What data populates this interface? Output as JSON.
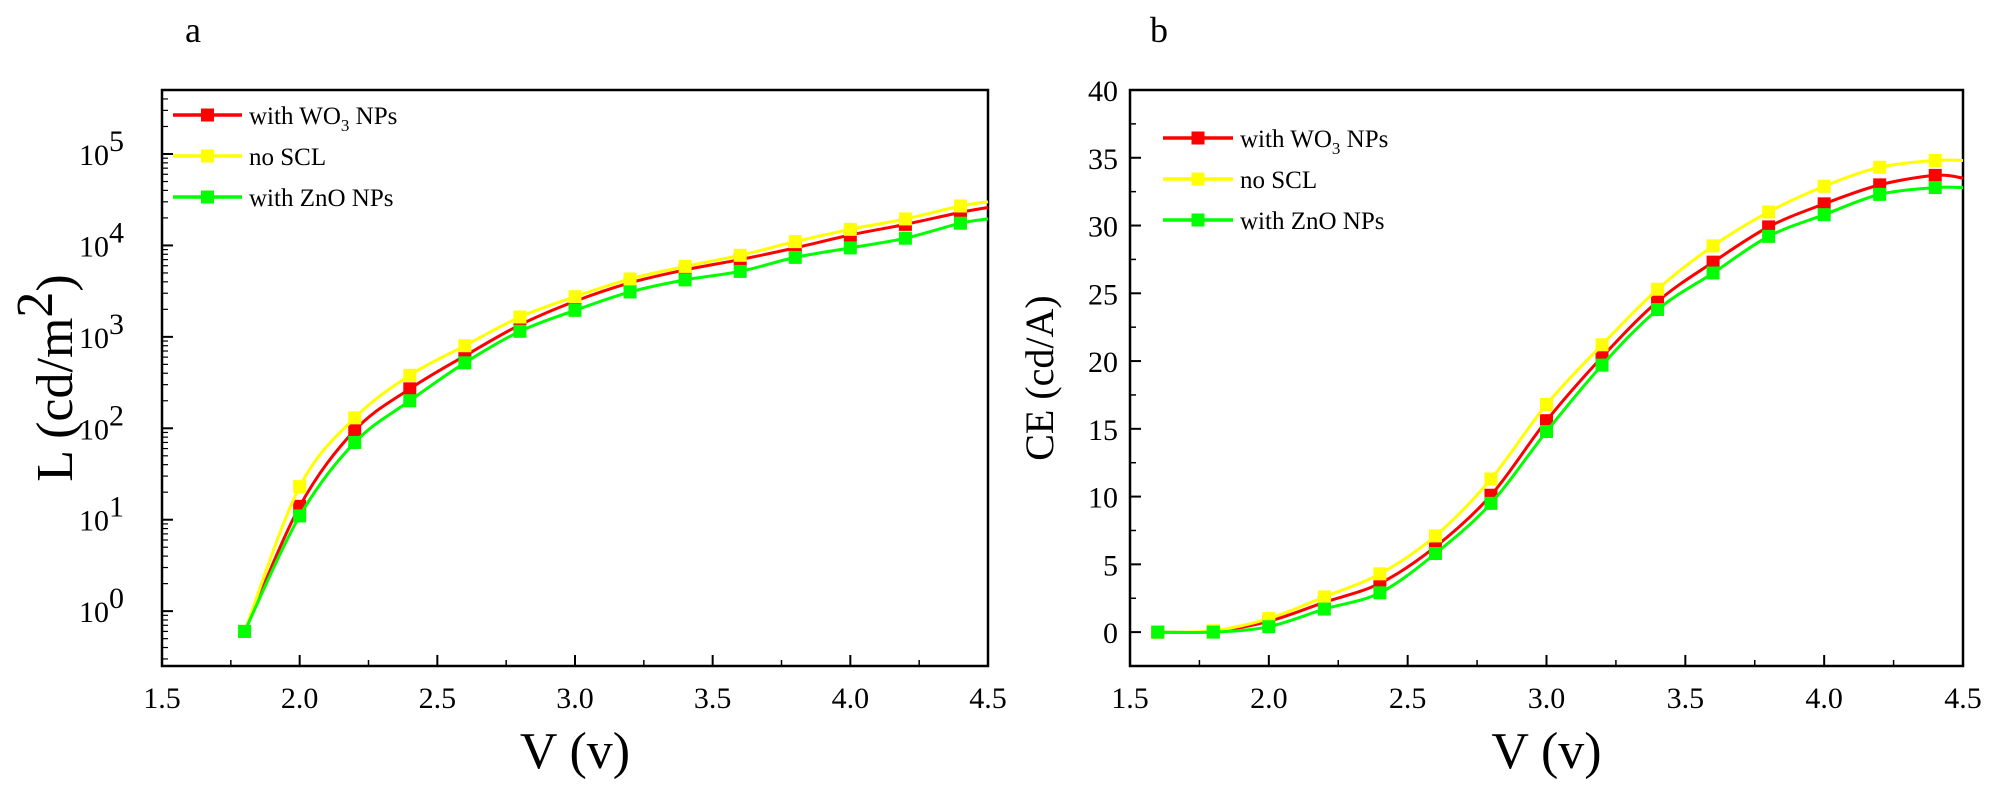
{
  "chart_data": [
    {
      "type": "line",
      "panel_label": "a",
      "scale": "log",
      "xlabel": "V (v)",
      "ylabel": "L (cd/m",
      "ylabel_sup": "2",
      "ylabel_end": ")",
      "xlim": [
        1.5,
        4.5
      ],
      "ylim_exp": [
        -0.6,
        5.7
      ],
      "x_ticks": [
        "1.5",
        "2.0",
        "2.5",
        "3.0",
        "3.5",
        "4.0",
        "4.5"
      ],
      "y_ticks": [
        {
          "base": "10",
          "exp": "0"
        },
        {
          "base": "10",
          "exp": "1"
        },
        {
          "base": "10",
          "exp": "2"
        },
        {
          "base": "10",
          "exp": "3"
        },
        {
          "base": "10",
          "exp": "4"
        },
        {
          "base": "10",
          "exp": "5"
        }
      ],
      "legend_position": "top-left",
      "x": [
        1.8,
        2.0,
        2.2,
        2.4,
        2.6,
        2.8,
        3.0,
        3.2,
        3.4,
        3.6,
        3.8,
        4.0,
        4.2,
        4.4,
        4.5
      ],
      "series": [
        {
          "name": "with WO",
          "name_sub": "3",
          "name_end": " NPs",
          "color": "#ff0000",
          "values": [
            0.6,
            14,
            95,
            270,
            620,
            1350,
            2450,
            3900,
            5400,
            7000,
            9400,
            13000,
            17000,
            23000,
            26000
          ]
        },
        {
          "name": "no SCL",
          "name_sub": "",
          "name_end": "",
          "color": "#ffff00",
          "values": [
            0.6,
            23,
            130,
            380,
            800,
            1650,
            2750,
            4300,
            5900,
            7800,
            11000,
            15000,
            19500,
            27000,
            30000
          ]
        },
        {
          "name": "with ZnO NPs",
          "name_sub": "",
          "name_end": "",
          "color": "#00ff00",
          "values": [
            0.6,
            11,
            70,
            200,
            520,
            1150,
            1950,
            3100,
            4200,
            5200,
            7400,
            9400,
            12000,
            17500,
            19500
          ]
        }
      ]
    },
    {
      "type": "line",
      "panel_label": "b",
      "scale": "linear",
      "xlabel": "V (v)",
      "ylabel": "CE (cd/A)",
      "xlim": [
        1.5,
        4.5
      ],
      "ylim": [
        -2.5,
        40
      ],
      "x_ticks": [
        "1.5",
        "2.0",
        "2.5",
        "3.0",
        "3.5",
        "4.0",
        "4.5"
      ],
      "y_ticks": [
        "0",
        "5",
        "10",
        "15",
        "20",
        "25",
        "30",
        "35",
        "40"
      ],
      "legend_position": "top-left",
      "x": [
        1.6,
        1.8,
        2.0,
        2.2,
        2.4,
        2.6,
        2.8,
        3.0,
        3.2,
        3.4,
        3.6,
        3.8,
        4.0,
        4.2,
        4.4,
        4.5
      ],
      "series": [
        {
          "name": "with WO",
          "name_sub": "3",
          "name_end": " NPs",
          "color": "#ff0000",
          "values": [
            0,
            0.05,
            0.8,
            2.2,
            3.6,
            6.3,
            10.1,
            15.6,
            20.3,
            24.4,
            27.3,
            29.9,
            31.6,
            33.0,
            33.7,
            33.5
          ]
        },
        {
          "name": "no SCL",
          "name_sub": "",
          "name_end": "",
          "color": "#ffff00",
          "values": [
            0,
            0.1,
            1.0,
            2.6,
            4.3,
            7.1,
            11.3,
            16.8,
            21.2,
            25.3,
            28.5,
            31.0,
            32.9,
            34.3,
            34.8,
            34.8
          ]
        },
        {
          "name": "with ZnO NPs",
          "name_sub": "",
          "name_end": "",
          "color": "#00ff00",
          "values": [
            0,
            0,
            0.4,
            1.7,
            2.9,
            5.8,
            9.5,
            14.8,
            19.7,
            23.8,
            26.5,
            29.2,
            30.8,
            32.3,
            32.8,
            32.8
          ]
        }
      ]
    }
  ]
}
